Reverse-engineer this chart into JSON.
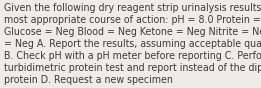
{
  "lines": [
    "Given the following dry reagent strip urinalysis results, select the",
    "most appropriate course of action: pH = 8.0 Protein = 1+",
    "Glucose = Neg Blood = Neg Ketone = Neg Nitrite = Neg Bilirubin",
    "= Neg A. Report the results, assuming acceptable quality control",
    "B. Check pH with a pH meter before reporting C. Perform a",
    "turbidimetric protein test and report instead of the dipstick",
    "protein D. Request a new specimen"
  ],
  "font_size": 6.85,
  "text_color": "#3c3c3c",
  "background_color": "#eeece8",
  "fig_width": 2.61,
  "fig_height": 0.88,
  "dpi": 100
}
